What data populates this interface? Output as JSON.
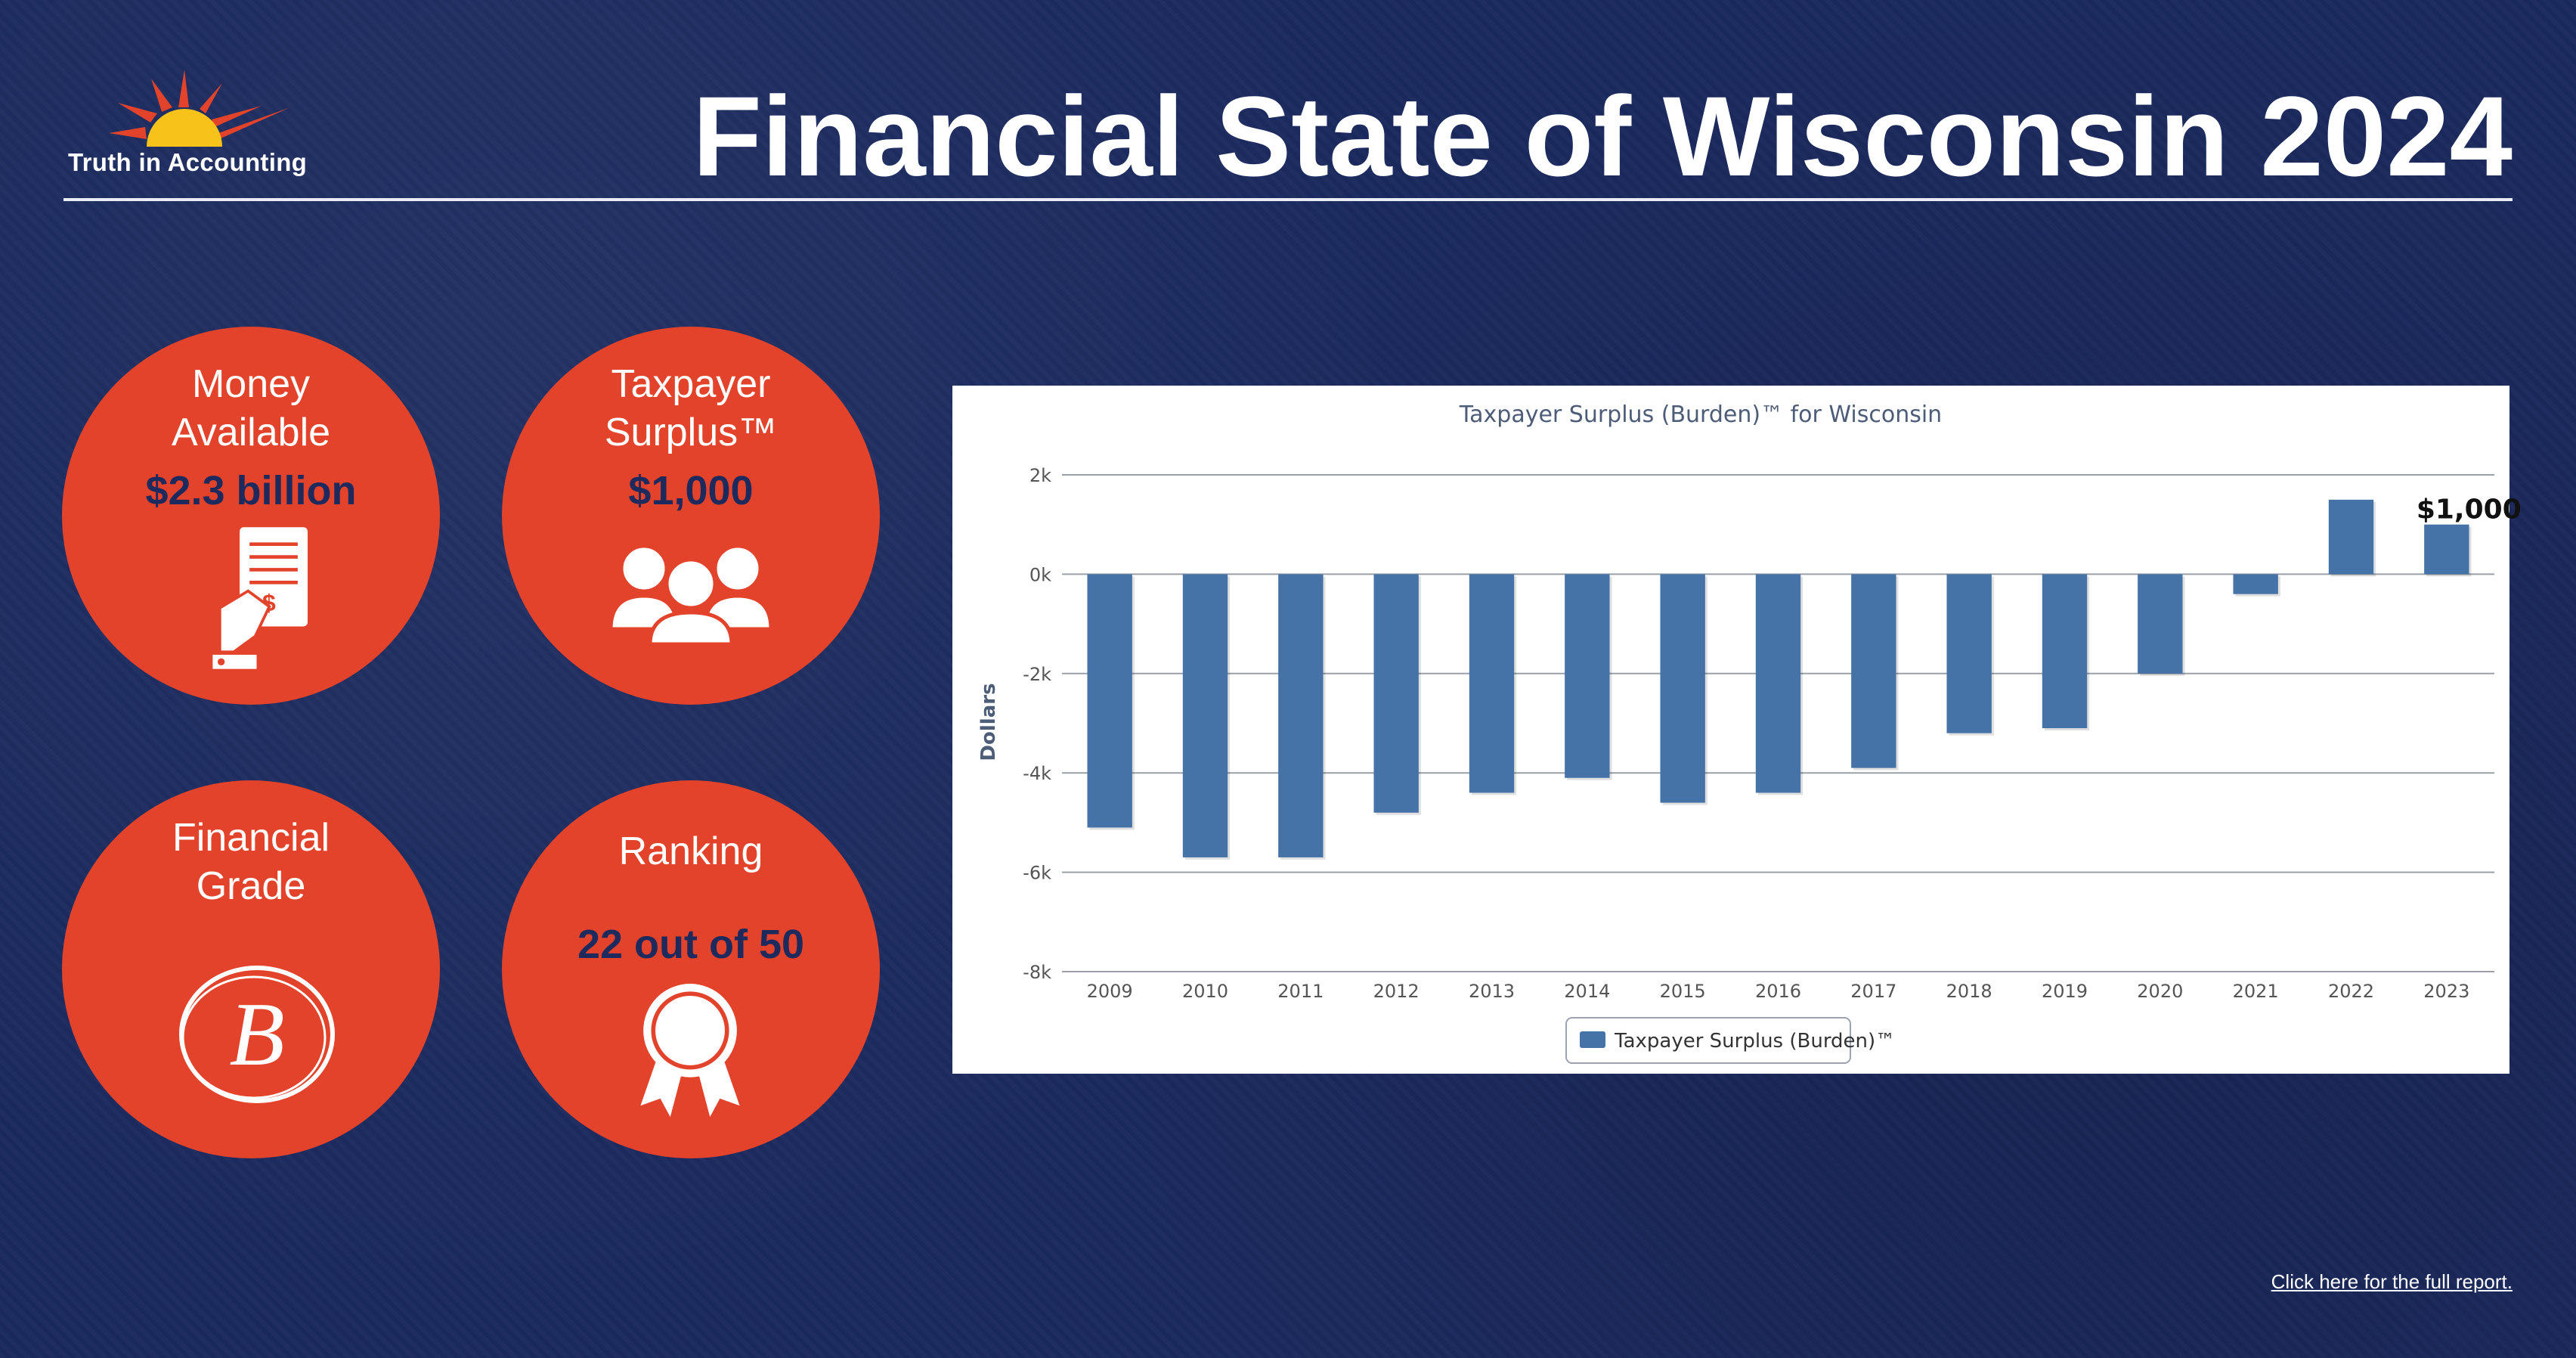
{
  "header": {
    "logo_text": "Truth in Accounting",
    "title": "Financial State of Wisconsin 2024"
  },
  "tiles": {
    "money": {
      "label_1": "Money",
      "label_2": "Available",
      "value": "$2.3 billion",
      "icon": "receipt-hand-icon"
    },
    "surplus": {
      "label_1": "Taxpayer",
      "label_2": "Surplus™",
      "value": "$1,000",
      "icon": "people-group-icon"
    },
    "grade": {
      "label_1": "Financial",
      "label_2": "Grade",
      "grade_letter": "B",
      "icon": "circled-grade-b-icon"
    },
    "ranking": {
      "label": "Ranking",
      "value": "22 out of 50",
      "icon": "award-ribbon-icon"
    }
  },
  "chart_data": {
    "type": "bar",
    "title": "Taxpayer Surplus (Burden)™ for Wisconsin",
    "xlabel": "",
    "ylabel": "Dollars",
    "ylim": [
      -8000,
      2000
    ],
    "yticks": [
      2000,
      0,
      -2000,
      -4000,
      -6000,
      -8000
    ],
    "ytick_labels": [
      "2k",
      "0k",
      "-2k",
      "-4k",
      "-6k",
      "-8k"
    ],
    "categories": [
      "2009",
      "2010",
      "2011",
      "2012",
      "2013",
      "2014",
      "2015",
      "2016",
      "2017",
      "2018",
      "2019",
      "2020",
      "2021",
      "2022",
      "2023"
    ],
    "series": [
      {
        "name": "Taxpayer Surplus (Burden)™",
        "color": "#4572a7",
        "values": [
          -5100,
          -5700,
          -5700,
          -4800,
          -4400,
          -4100,
          -4600,
          -4400,
          -3900,
          -3200,
          -3100,
          -2000,
          -400,
          1500,
          1000
        ]
      }
    ],
    "annotation": {
      "category": "2023",
      "text": "$1,000"
    },
    "grid": true,
    "legend": "bottom-center"
  },
  "footer": {
    "link_text": "Click here for the full report."
  },
  "colors": {
    "background": "#1b2a5e",
    "accent": "#e2432a",
    "bar": "#4572a7",
    "text_dark": "#1c2a5e"
  }
}
